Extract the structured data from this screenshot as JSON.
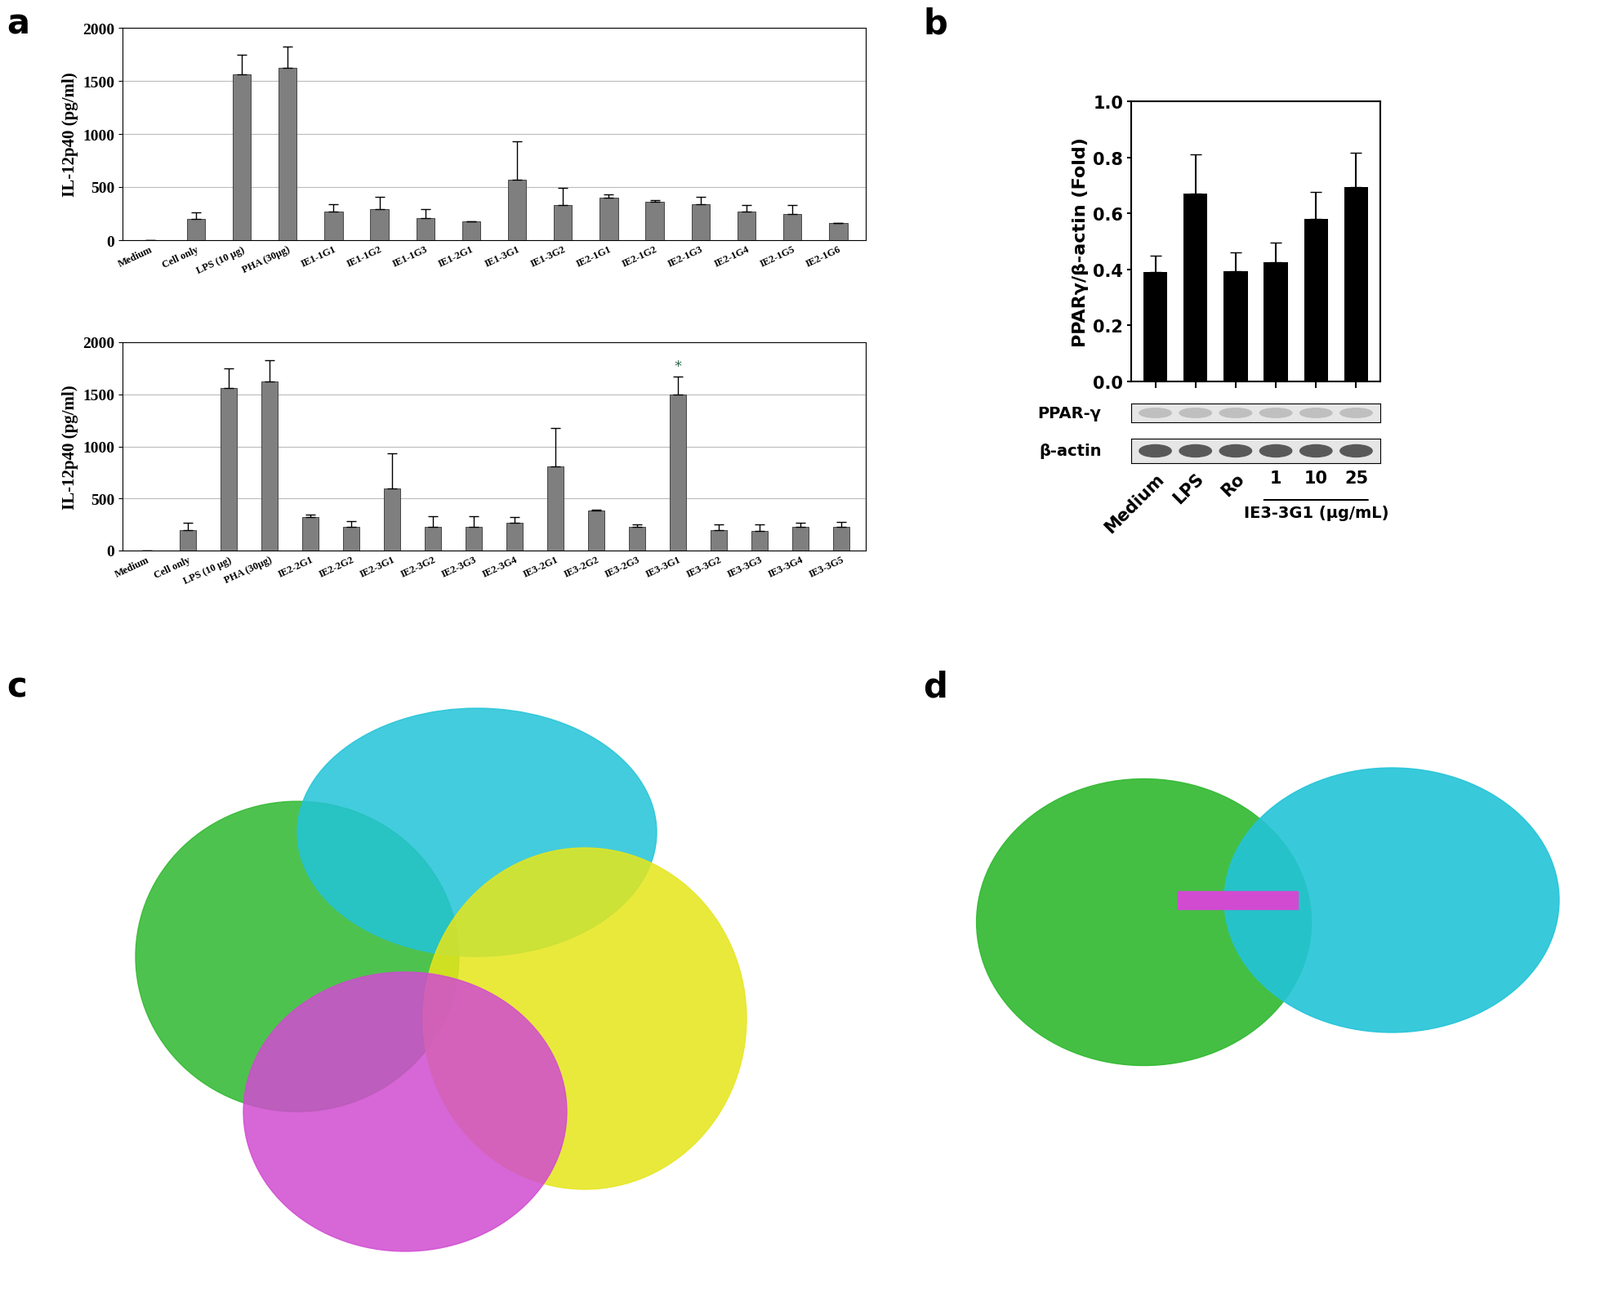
{
  "panel_labels": [
    "a",
    "b",
    "c",
    "d"
  ],
  "chart_data": [
    {
      "type": "bar",
      "ylabel": "IL-12p40 (pg/ml)",
      "categories": [
        "Medium",
        "Cell only",
        "LPS (10 μg)",
        "PHA (30μg)",
        "IE1-1G1",
        "IE1-1G2",
        "IE1-1G3",
        "IE1-2G1",
        "IE1-3G1",
        "IE1-3G2",
        "IE2-1G1",
        "IE2-1G2",
        "IE2-1G3",
        "IE2-1G4",
        "IE2-1G5",
        "IE2-1G6"
      ],
      "values": [
        0,
        200,
        1560,
        1620,
        270,
        290,
        210,
        175,
        570,
        330,
        400,
        360,
        340,
        270,
        250,
        160
      ],
      "errors": [
        0,
        65,
        190,
        200,
        70,
        120,
        80,
        5,
        360,
        160,
        30,
        20,
        70,
        60,
        80,
        0
      ],
      "color": "#7f7f7f",
      "ylim": [
        0,
        2000
      ],
      "yticks": [
        0,
        500,
        1000,
        1500,
        2000
      ],
      "grid": true
    },
    {
      "type": "bar",
      "ylabel": "IL-12p40 (pg/ml)",
      "categories": [
        "Medium",
        "Cell only",
        "LPS (10 μg)",
        "PHA (30μg)",
        "IE2-2G1",
        "IE2-2G2",
        "IE2-3G1",
        "IE2-3G2",
        "IE2-3G3",
        "IE2-3G4",
        "IE3-2G1",
        "IE3-2G2",
        "IE3-2G3",
        "IE3-3G1",
        "IE3-3G2",
        "IE3-3G3",
        "IE3-3G4",
        "IE3-3G5"
      ],
      "values": [
        0,
        200,
        1560,
        1620,
        320,
        230,
        600,
        230,
        230,
        265,
        810,
        385,
        225,
        1500,
        200,
        190,
        230,
        225
      ],
      "errors": [
        0,
        65,
        190,
        210,
        25,
        50,
        330,
        100,
        100,
        60,
        370,
        10,
        25,
        170,
        50,
        60,
        40,
        50
      ],
      "annotations": [
        {
          "category": "IE3-3G1",
          "text": "*"
        }
      ],
      "color": "#7f7f7f",
      "ylim": [
        0,
        2000
      ],
      "yticks": [
        0,
        500,
        1000,
        1500,
        2000
      ],
      "grid": true
    },
    {
      "type": "bar",
      "ylabel": "PPARγ/β-actin (Fold)",
      "categories": [
        "Medium",
        "LPS",
        "Ro",
        "1",
        "10",
        "25"
      ],
      "values": [
        0.39,
        0.67,
        0.395,
        0.425,
        0.58,
        0.695
      ],
      "errors": [
        0.06,
        0.14,
        0.065,
        0.07,
        0.095,
        0.12
      ],
      "color": "#000000",
      "ylim": [
        0,
        1.0
      ],
      "yticks": [
        {
          "value": 0,
          "label": "0.0"
        },
        {
          "value": 0.2,
          "label": "0.2"
        },
        {
          "value": 0.4,
          "label": "0.4"
        },
        {
          "value": 0.6,
          "label": "0.6"
        },
        {
          "value": 0.8,
          "label": "0.8"
        },
        {
          "value": 1.0,
          "label": "1.0"
        }
      ],
      "blot_rows": [
        "PPAR-γ",
        "β-actin"
      ],
      "group": {
        "label": "IE3-3G1 (μg/mL)",
        "categories": [
          "1",
          "10",
          "25"
        ]
      }
    }
  ]
}
